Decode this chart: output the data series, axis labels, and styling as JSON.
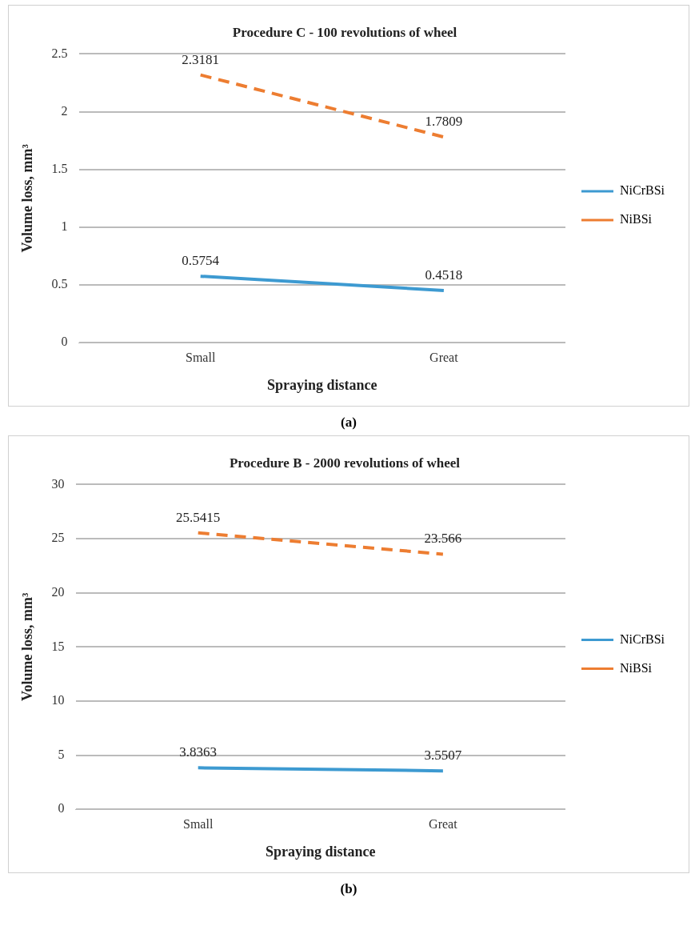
{
  "chart_data": [
    {
      "type": "line",
      "title": "Procedure C - 100 revolutions of wheel",
      "xlabel": "Spraying distance",
      "ylabel": "Volume loss, mm³",
      "categories": [
        "Small",
        "Great"
      ],
      "series": [
        {
          "name": "NiCrBSi",
          "color": "#3d9ad1",
          "values": [
            0.5754,
            0.4518
          ],
          "line_style": "solid"
        },
        {
          "name": "NiBSi",
          "color": "#ed7d31",
          "values": [
            2.3181,
            1.7809
          ],
          "line_style": "dashed"
        }
      ],
      "ylim": [
        0,
        2.5
      ],
      "yticks": [
        0,
        0.5,
        1,
        1.5,
        2,
        2.5
      ],
      "grid": "y",
      "legend": "right",
      "marker": "none",
      "data_labels": true,
      "annotations": [
        "(a)"
      ]
    },
    {
      "type": "line",
      "title": "Procedure B - 2000 revolutions of wheel",
      "xlabel": "Spraying distance",
      "ylabel": "Volume loss, mm³",
      "categories": [
        "Small",
        "Great"
      ],
      "series": [
        {
          "name": "NiCrBSi",
          "color": "#3d9ad1",
          "values": [
            3.8363,
            3.5507
          ],
          "line_style": "solid"
        },
        {
          "name": "NiBSi",
          "color": "#ed7d31",
          "values": [
            25.5415,
            23.566
          ],
          "line_style": "dashed"
        }
      ],
      "ylim": [
        0,
        30
      ],
      "yticks": [
        0,
        5,
        10,
        15,
        20,
        25,
        30
      ],
      "grid": "y",
      "legend": "right",
      "marker": "none",
      "data_labels": true,
      "annotations": [
        "(b)"
      ]
    }
  ]
}
